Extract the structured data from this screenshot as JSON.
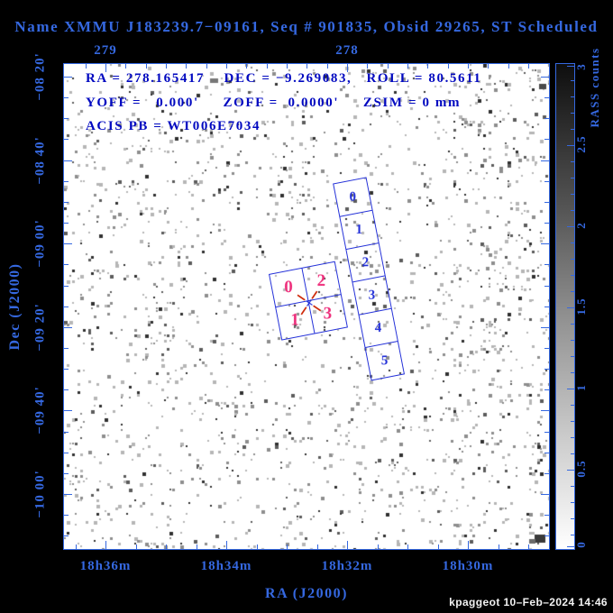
{
  "title": "Name XMMU J183239.7−09161, Seq # 901835, Obsid 29265, ST Scheduled",
  "annotations": {
    "line1": "RA = 278.165417    DEC = −9.269083,   ROLL = 80.5611",
    "line2": "YOFF =   0.000'     ZOFF =  0.0000'     ZSIM = 0 mm",
    "line3": "ACIS PB = WT006E7034"
  },
  "axes": {
    "x_bottom": {
      "title": "RA (J2000)",
      "ticks": [
        "18h36m",
        "18h34m",
        "18h32m",
        "18h30m"
      ]
    },
    "x_top": {
      "ticks": [
        "279",
        "278"
      ]
    },
    "y_left": {
      "title": "Dec (J2000)",
      "ticks": [
        "−08 20'",
        "−08 40'",
        "−09 00'",
        "−09 20'",
        "−09 40'",
        "−10 00'"
      ]
    }
  },
  "colorbar": {
    "title": "RASS counts",
    "ticks": [
      "0",
      "0.5",
      "1",
      "1.5",
      "2",
      "2.5",
      "3"
    ]
  },
  "detectors": {
    "acis_i_chips": [
      "0",
      "2",
      "1",
      "3"
    ],
    "acis_s_chips": [
      "0",
      "1",
      "2",
      "3",
      "4",
      "5"
    ]
  },
  "footer": "kpaggeot 10–Feb–2024 14:46",
  "colors": {
    "background": "#000000",
    "plot_bg": "#ffffff",
    "axis_blue": "#3568e0",
    "annotation_navy": "#0008c0",
    "footprint_blue": "#2330d8",
    "chip_label_pink": "#ee2e7b",
    "aimpoint_red": "#cc2200"
  },
  "chart_data": {
    "type": "heatmap",
    "title": "RASS counts sky image with ACIS detector footprint overlay",
    "xlabel": "RA (J2000)",
    "ylabel": "Dec (J2000)",
    "x_ticks_bottom": [
      "18h36m",
      "18h34m",
      "18h32m",
      "18h30m"
    ],
    "x_ticks_top_degrees": [
      279,
      278
    ],
    "y_ticks": [
      "-08 20'",
      "-08 40'",
      "-09 00'",
      "-09 20'",
      "-09 40'",
      "-10 00'"
    ],
    "x_range_degrees": [
      279.18,
      277.16
    ],
    "y_range_degrees": [
      -8.28,
      -10.22
    ],
    "grid": false,
    "colorbar": {
      "label": "RASS counts",
      "min": 0,
      "max": 3,
      "ticks": [
        0,
        0.5,
        1,
        1.5,
        2,
        2.5,
        3
      ],
      "scale": "grayscale, dark = high"
    },
    "pointing": {
      "ra_deg": 278.165417,
      "dec_deg": -9.269083,
      "roll_deg": 80.5611,
      "yoff_arcmin": 0.0,
      "zoff_arcmin": 0.0,
      "zsim_mm": 0,
      "acis_pb": "WT006E7034"
    },
    "overlays": [
      {
        "name": "ACIS-I array",
        "chips": [
          "0",
          "2",
          "1",
          "3"
        ],
        "shape": "2x2 square array rotated by roll angle, centered on aimpoint"
      },
      {
        "name": "ACIS-S array",
        "chips": [
          "0",
          "1",
          "2",
          "3",
          "4",
          "5"
        ],
        "shape": "1x6 strip rotated by roll angle, adjacent to ACIS-I"
      },
      {
        "name": "aimpoint",
        "marker": "red X at target RA/Dec"
      }
    ],
    "background": "sparse random grayscale speckle noise (RASS photon counts)"
  }
}
